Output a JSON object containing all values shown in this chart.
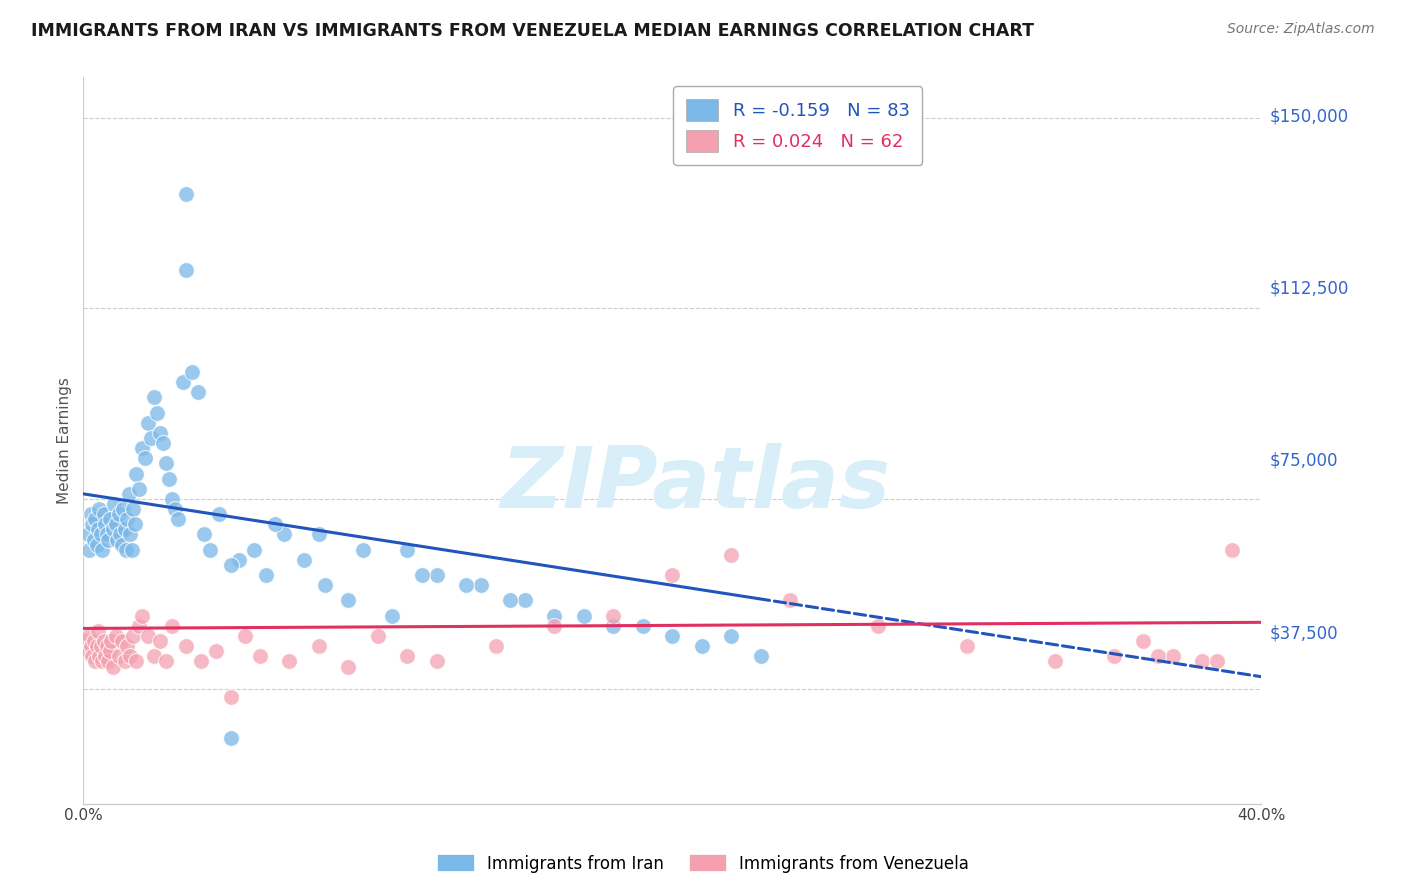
{
  "title": "IMMIGRANTS FROM IRAN VS IMMIGRANTS FROM VENEZUELA MEDIAN EARNINGS CORRELATION CHART",
  "source": "Source: ZipAtlas.com",
  "ylabel": "Median Earnings",
  "yticks": [
    0,
    37500,
    75000,
    112500,
    150000
  ],
  "ytick_labels": [
    "",
    "$37,500",
    "$75,000",
    "$112,500",
    "$150,000"
  ],
  "xmin": 0.0,
  "xmax": 40.0,
  "ymin": 15000,
  "ymax": 158000,
  "iran_R": -0.159,
  "iran_N": 83,
  "venezuela_R": 0.024,
  "venezuela_N": 62,
  "iran_color": "#7ab8e8",
  "venezuela_color": "#f4a0b0",
  "iran_line_color": "#2255bb",
  "venezuela_line_color": "#e03060",
  "iran_trend_intercept": 76000,
  "iran_trend_slope": -900,
  "venezuela_trend_intercept": 49500,
  "venezuela_trend_slope": 30,
  "watermark_color": "#d8eef8",
  "iran_legend_label": "R = -0.159   N = 83",
  "venezuela_legend_label": "R = 0.024   N = 62",
  "iran_bottom_label": "Immigrants from Iran",
  "venezuela_bottom_label": "Immigrants from Venezuela",
  "iran_x": [
    0.15,
    0.2,
    0.25,
    0.3,
    0.35,
    0.4,
    0.45,
    0.5,
    0.55,
    0.6,
    0.65,
    0.7,
    0.75,
    0.8,
    0.85,
    0.9,
    1.0,
    1.05,
    1.1,
    1.15,
    1.2,
    1.25,
    1.3,
    1.35,
    1.4,
    1.45,
    1.5,
    1.55,
    1.6,
    1.65,
    1.7,
    1.75,
    1.8,
    1.9,
    2.0,
    2.1,
    2.2,
    2.3,
    2.4,
    2.5,
    2.6,
    2.7,
    2.8,
    2.9,
    3.0,
    3.1,
    3.2,
    3.4,
    3.5,
    3.7,
    3.9,
    4.1,
    4.3,
    4.6,
    5.0,
    5.3,
    5.8,
    6.2,
    6.8,
    7.5,
    8.2,
    9.0,
    10.5,
    11.0,
    12.0,
    13.5,
    15.0,
    17.0,
    19.0,
    22.0,
    5.0,
    3.5,
    6.5,
    8.0,
    9.5,
    11.5,
    13.0,
    14.5,
    16.0,
    18.0,
    20.0,
    21.0,
    23.0
  ],
  "iran_y": [
    68000,
    65000,
    72000,
    70000,
    67000,
    71000,
    66000,
    69000,
    73000,
    68000,
    65000,
    72000,
    70000,
    68000,
    67000,
    71000,
    69000,
    74000,
    70000,
    67000,
    72000,
    68000,
    66000,
    73000,
    69000,
    65000,
    71000,
    76000,
    68000,
    65000,
    73000,
    70000,
    80000,
    77000,
    85000,
    83000,
    90000,
    87000,
    95000,
    92000,
    88000,
    86000,
    82000,
    79000,
    75000,
    73000,
    71000,
    98000,
    135000,
    100000,
    96000,
    68000,
    65000,
    72000,
    28000,
    63000,
    65000,
    60000,
    68000,
    63000,
    58000,
    55000,
    52000,
    65000,
    60000,
    58000,
    55000,
    52000,
    50000,
    48000,
    62000,
    120000,
    70000,
    68000,
    65000,
    60000,
    58000,
    55000,
    52000,
    50000,
    48000,
    46000,
    44000
  ],
  "venezuela_x": [
    0.1,
    0.15,
    0.2,
    0.25,
    0.3,
    0.35,
    0.4,
    0.45,
    0.5,
    0.55,
    0.6,
    0.65,
    0.7,
    0.75,
    0.8,
    0.85,
    0.9,
    0.95,
    1.0,
    1.1,
    1.2,
    1.3,
    1.4,
    1.5,
    1.6,
    1.7,
    1.8,
    1.9,
    2.0,
    2.2,
    2.4,
    2.6,
    2.8,
    3.0,
    3.5,
    4.0,
    4.5,
    5.0,
    5.5,
    6.0,
    7.0,
    8.0,
    9.0,
    10.0,
    11.0,
    12.0,
    14.0,
    16.0,
    18.0,
    20.0,
    22.0,
    24.0,
    27.0,
    30.0,
    33.0,
    35.0,
    36.0,
    37.0,
    38.0,
    39.0,
    36.5,
    38.5
  ],
  "venezuela_y": [
    47000,
    45000,
    48000,
    46000,
    44000,
    47000,
    43000,
    46000,
    49000,
    44000,
    46000,
    43000,
    47000,
    44000,
    46000,
    43000,
    45000,
    47000,
    42000,
    48000,
    44000,
    47000,
    43000,
    46000,
    44000,
    48000,
    43000,
    50000,
    52000,
    48000,
    44000,
    47000,
    43000,
    50000,
    46000,
    43000,
    45000,
    36000,
    48000,
    44000,
    43000,
    46000,
    42000,
    48000,
    44000,
    43000,
    46000,
    50000,
    52000,
    60000,
    64000,
    55000,
    50000,
    46000,
    43000,
    44000,
    47000,
    44000,
    43000,
    65000,
    44000,
    43000
  ]
}
